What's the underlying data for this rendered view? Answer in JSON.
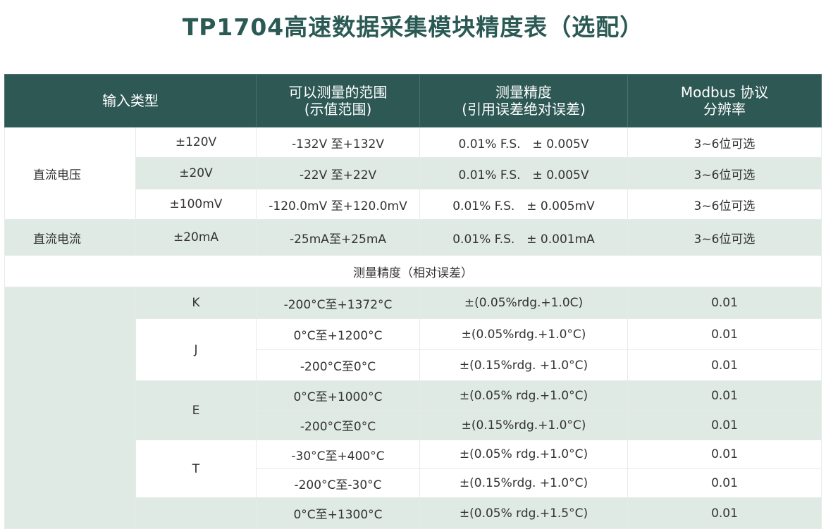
{
  "title": "TP1704高速数据采集模块精度表（选配）",
  "header": {
    "input_type": "输入类型",
    "range_line1": "可以测量的范围",
    "range_line2": "(示值范围)",
    "accuracy_line1": "测量精度",
    "accuracy_line2": "(引用误差绝对误差)",
    "modbus_line1": "Modbus 协议",
    "modbus_line2": "分辨率"
  },
  "dc_voltage": {
    "label": "直流电压",
    "rows": [
      {
        "range": "±120V",
        "display": "-132V 至+132V",
        "accuracy": "0.01% F.S.　± 0.005V",
        "resolution": "3~6位可选"
      },
      {
        "range": "±20V",
        "display": "-22V 至+22V",
        "accuracy": "0.01% F.S.　± 0.005V",
        "resolution": "3~6位可选"
      },
      {
        "range": "±100mV",
        "display": "-120.0mV 至+120.0mV",
        "accuracy": "0.01% F.S.　± 0.005mV",
        "resolution": "3~6位可选"
      }
    ]
  },
  "dc_current": {
    "label": "直流电流",
    "range": "±20mA",
    "display": "-25mA至+25mA",
    "accuracy": "0.01% F.S.　± 0.001mA",
    "resolution": "3~6位可选"
  },
  "section_label": "测量精度（相对误差）",
  "thermocouple": [
    {
      "type": "K",
      "display": "-200°C至+1372°C",
      "accuracy": "±(0.05%rdg.+1.0C)",
      "resolution": "0.01"
    },
    {
      "type": "J",
      "display": "0°C至+1200°C",
      "accuracy": "±(0.05%rdg.+1.0°C)",
      "resolution": "0.01"
    },
    {
      "type": "",
      "display": "-200°C至0°C",
      "accuracy": "±(0.15%rdg. +1.0°C)",
      "resolution": "0.01"
    },
    {
      "type": "E",
      "display": "0°C至+1000°C",
      "accuracy": "±(0.05% rdg.+1.0°C)",
      "resolution": "0.01"
    },
    {
      "type": "",
      "display": "-200°C至0°C",
      "accuracy": "±(0.15%rdg.+1.0°C)",
      "resolution": "0.01"
    },
    {
      "type": "T",
      "display": "-30°C至+400°C",
      "accuracy": "±(0.05% rdg.+1.0°C)",
      "resolution": "0.01"
    },
    {
      "type": "",
      "display": "-200°C至-30°C",
      "accuracy": "±(0.15%rdg. +1.0°C)",
      "resolution": "0.01"
    },
    {
      "type": "",
      "display": "0°C至+1300°C",
      "accuracy": "±(0.05% rdg.+1.5°C)",
      "resolution": "0.01"
    }
  ],
  "colors": {
    "header_bg": "#2d5854",
    "title": "#2b5a55",
    "row_tint": "#dfeae4"
  }
}
